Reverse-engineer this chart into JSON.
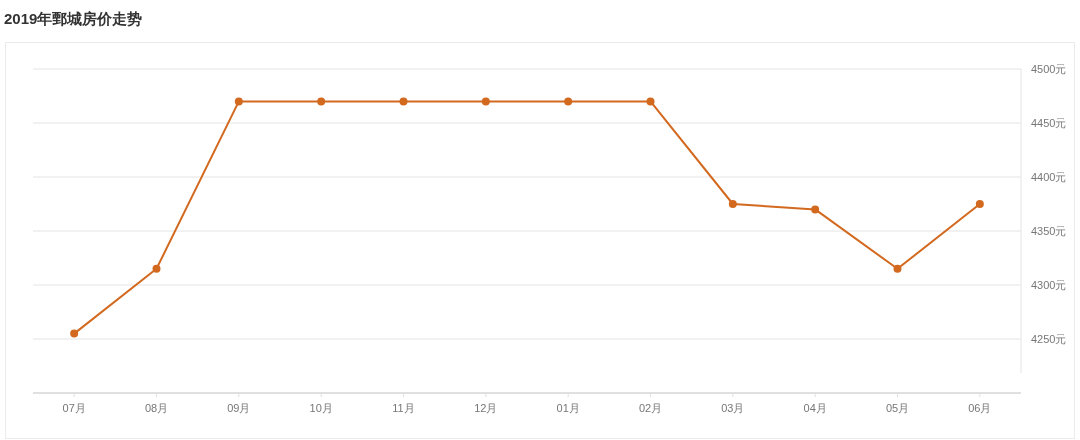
{
  "chart_data": {
    "type": "line",
    "title": "2019年鄄城房价走势",
    "categories": [
      "07月",
      "08月",
      "09月",
      "10月",
      "11月",
      "12月",
      "01月",
      "02月",
      "03月",
      "04月",
      "05月",
      "06月"
    ],
    "series": [
      {
        "color": "#d2691e",
        "values": [
          4255,
          4315,
          4470,
          4470,
          4470,
          4470,
          4470,
          4470,
          4375,
          4370,
          4315,
          4375
        ]
      }
    ],
    "ylim": [
      4200,
      4500
    ],
    "yticks": [
      {
        "value": 4250,
        "label": "4250元"
      },
      {
        "value": 4300,
        "label": "4300元"
      },
      {
        "value": 4350,
        "label": "4350元"
      },
      {
        "value": 4400,
        "label": "4400元"
      },
      {
        "value": 4450,
        "label": "4450元"
      },
      {
        "value": 4500,
        "label": "4500元"
      }
    ],
    "grid": "y",
    "marker": "circle",
    "line_style": "solid"
  }
}
